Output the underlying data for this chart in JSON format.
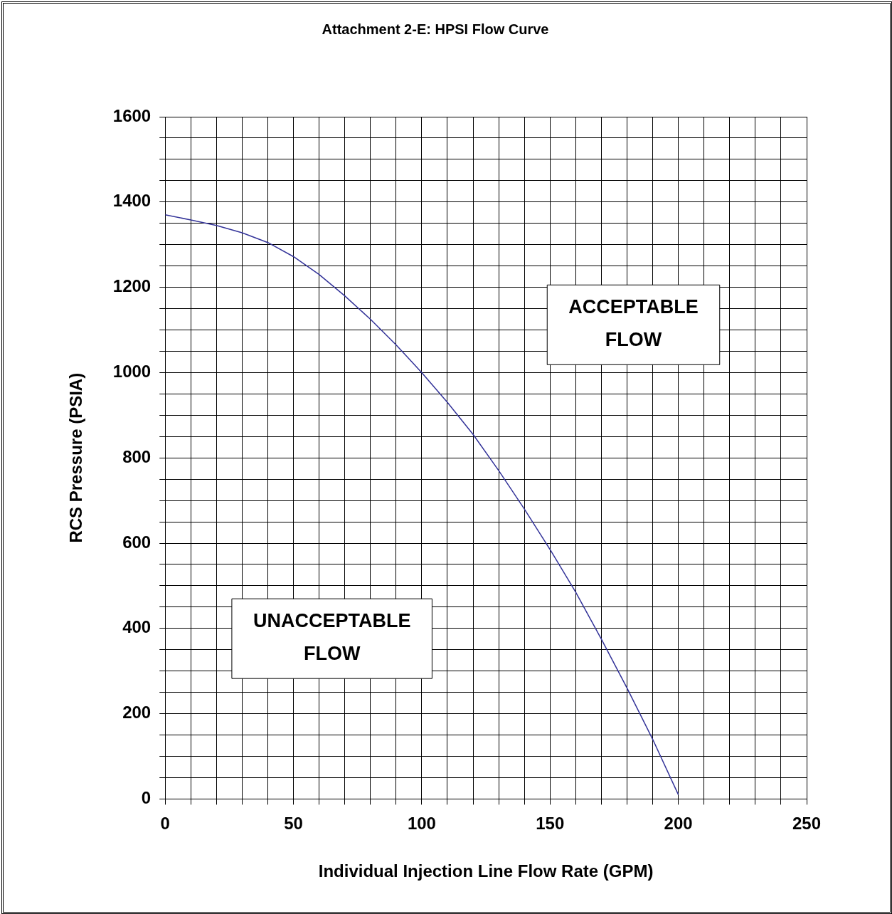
{
  "chart_data": {
    "type": "line",
    "title": "Attachment 2-E: HPSI Flow Curve",
    "xlabel": "Individual Injection Line Flow Rate (GPM)",
    "ylabel": "RCS Pressure (PSIA)",
    "x": [
      0,
      10,
      20,
      30,
      40,
      50,
      60,
      70,
      80,
      90,
      100,
      110,
      120,
      130,
      140,
      150,
      160,
      170,
      180,
      190,
      200
    ],
    "series": [
      {
        "color": "#333399",
        "values": [
          1370,
          1358,
          1345,
          1328,
          1305,
          1272,
          1230,
          1180,
          1125,
          1065,
          1000,
          930,
          855,
          770,
          680,
          585,
          485,
          375,
          260,
          140,
          10
        ]
      }
    ],
    "xlim": [
      0,
      250
    ],
    "xticks": [
      0,
      {
        "value": 10,
        "label": null
      },
      {
        "value": 20,
        "label": null
      },
      {
        "value": 30,
        "label": null
      },
      {
        "value": 40,
        "label": null
      },
      50,
      {
        "value": 60,
        "label": null
      },
      {
        "value": 70,
        "label": null
      },
      {
        "value": 80,
        "label": null
      },
      {
        "value": 90,
        "label": null
      },
      100,
      {
        "value": 110,
        "label": null
      },
      {
        "value": 120,
        "label": null
      },
      {
        "value": 130,
        "label": null
      },
      {
        "value": 140,
        "label": null
      },
      150,
      {
        "value": 160,
        "label": null
      },
      {
        "value": 170,
        "label": null
      },
      {
        "value": 180,
        "label": null
      },
      {
        "value": 190,
        "label": null
      },
      200,
      {
        "value": 210,
        "label": null
      },
      {
        "value": 220,
        "label": null
      },
      {
        "value": 230,
        "label": null
      },
      {
        "value": 240,
        "label": null
      },
      250
    ],
    "ylim": [
      0,
      1600
    ],
    "yticks": [
      0,
      {
        "value": 50,
        "label": null
      },
      {
        "value": 100,
        "label": null
      },
      {
        "value": 150,
        "label": null
      },
      200,
      {
        "value": 250,
        "label": null
      },
      {
        "value": 300,
        "label": null
      },
      {
        "value": 350,
        "label": null
      },
      400,
      {
        "value": 450,
        "label": null
      },
      {
        "value": 500,
        "label": null
      },
      {
        "value": 550,
        "label": null
      },
      600,
      {
        "value": 650,
        "label": null
      },
      {
        "value": 700,
        "label": null
      },
      {
        "value": 750,
        "label": null
      },
      800,
      {
        "value": 850,
        "label": null
      },
      {
        "value": 900,
        "label": null
      },
      {
        "value": 950,
        "label": null
      },
      1000,
      {
        "value": 1050,
        "label": null
      },
      {
        "value": 1100,
        "label": null
      },
      {
        "value": 1150,
        "label": null
      },
      1200,
      {
        "value": 1250,
        "label": null
      },
      {
        "value": 1300,
        "label": null
      },
      {
        "value": 1350,
        "label": null
      },
      1400,
      {
        "value": 1450,
        "label": null
      },
      {
        "value": 1500,
        "label": null
      },
      {
        "value": 1550,
        "label": null
      },
      1600
    ],
    "grid": true,
    "legend": false,
    "marker": "none",
    "line_style": "solid",
    "annotations": [
      "ACCEPTABLE FLOW",
      "UNACCEPTABLE FLOW"
    ]
  }
}
